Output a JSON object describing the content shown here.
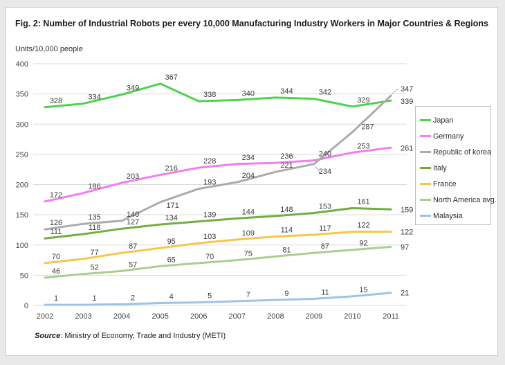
{
  "title": "Fig. 2: Number of Industrial Robots per every 10,000 Manufacturing Industry Workers in Major Countries & Regions",
  "units_label": "Units/10,000 people",
  "source": {
    "label": "Source",
    "text": ": Ministry of Economy, Trade and Industry (METI)"
  },
  "chart_data": {
    "type": "line",
    "title": "Fig. 2: Number of Industrial Robots per every 10,000 Manufacturing Industry Workers in Major Countries & Regions",
    "xlabel": "",
    "ylabel": "Units/10,000 people",
    "x": [
      2002,
      2003,
      2004,
      2005,
      2006,
      2007,
      2008,
      2009,
      2010,
      2011
    ],
    "ylim": [
      0,
      400
    ],
    "ytick_step": 50,
    "grid": "horizontal",
    "legend_position": "right",
    "colors": {
      "gridline": "#d9d9d9",
      "axis_text": "#444444",
      "data_label": "#3a3a3a",
      "leader_line": "#b0b0b0"
    },
    "series": [
      {
        "name": "Japan",
        "color": "#4fd24f",
        "values": [
          328,
          334,
          349,
          367,
          338,
          340,
          344,
          342,
          329,
          339
        ]
      },
      {
        "name": "Germany",
        "color": "#f07ef0",
        "values": [
          172,
          186,
          203,
          216,
          228,
          234,
          236,
          240,
          253,
          261
        ]
      },
      {
        "name": "Republic of korea",
        "color": "#ababab",
        "values": [
          126,
          135,
          140,
          171,
          193,
          204,
          221,
          234,
          287,
          347
        ]
      },
      {
        "name": "Italy",
        "color": "#72ae3f",
        "values": [
          111,
          118,
          127,
          134,
          139,
          144,
          148,
          153,
          161,
          159
        ]
      },
      {
        "name": "France",
        "color": "#f9c549",
        "values": [
          70,
          77,
          87,
          95,
          103,
          109,
          114,
          117,
          122,
          122
        ]
      },
      {
        "name": "North America avg.",
        "color": "#a9cf8e",
        "values": [
          46,
          52,
          57,
          65,
          70,
          75,
          81,
          87,
          92,
          97
        ]
      },
      {
        "name": "Malaysia",
        "color": "#9dc3e6",
        "values": [
          1,
          1,
          2,
          4,
          5,
          7,
          9,
          11,
          15,
          21
        ]
      }
    ]
  }
}
